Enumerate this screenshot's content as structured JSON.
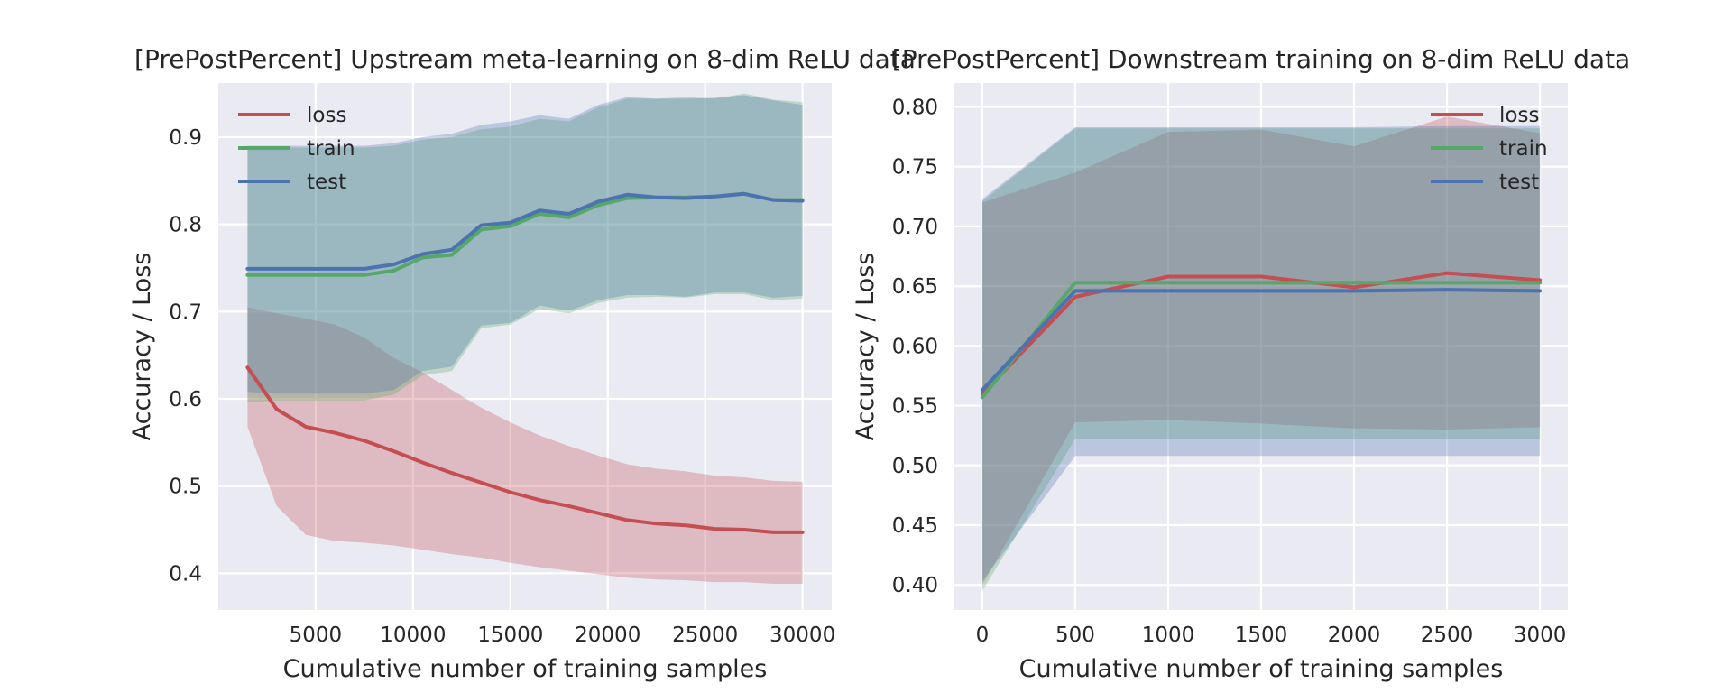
{
  "colors": {
    "loss": "#c44e52",
    "train": "#55a868",
    "test": "#4c72b0",
    "plot_bg": "#eaeaf2",
    "grid": "#ffffff"
  },
  "chart_data": [
    {
      "type": "line",
      "title": "[PrePostPercent] Upstream meta-learning on 8-dim ReLU data",
      "xlabel": "Cumulative number of training samples",
      "ylabel": "Accuracy / Loss",
      "xlim": [
        0,
        31500
      ],
      "ylim": [
        0.358,
        0.962
      ],
      "xticks": [
        5000,
        10000,
        15000,
        20000,
        25000,
        30000
      ],
      "yticks": [
        0.4,
        0.5,
        0.6,
        0.7,
        0.8,
        0.9
      ],
      "grid": true,
      "legend": "top-left",
      "x": [
        1500,
        3000,
        4500,
        6000,
        7500,
        9000,
        10500,
        12000,
        13500,
        15000,
        16500,
        18000,
        19500,
        21000,
        22500,
        24000,
        25500,
        27000,
        28500,
        30000
      ],
      "series": [
        {
          "name": "loss",
          "color_key": "loss",
          "values": [
            0.636,
            0.588,
            0.568,
            0.561,
            0.552,
            0.54,
            0.527,
            0.515,
            0.504,
            0.493,
            0.484,
            0.477,
            0.469,
            0.461,
            0.457,
            0.455,
            0.451,
            0.45,
            0.447,
            0.447
          ],
          "lower": [
            0.568,
            0.477,
            0.444,
            0.437,
            0.435,
            0.432,
            0.427,
            0.422,
            0.418,
            0.412,
            0.407,
            0.403,
            0.399,
            0.395,
            0.393,
            0.392,
            0.39,
            0.39,
            0.388,
            0.388
          ],
          "upper": [
            0.705,
            0.698,
            0.692,
            0.685,
            0.67,
            0.647,
            0.63,
            0.61,
            0.59,
            0.573,
            0.558,
            0.546,
            0.535,
            0.525,
            0.52,
            0.517,
            0.512,
            0.51,
            0.506,
            0.505
          ]
        },
        {
          "name": "train",
          "color_key": "train",
          "values": [
            0.742,
            0.742,
            0.742,
            0.742,
            0.742,
            0.747,
            0.762,
            0.765,
            0.794,
            0.798,
            0.812,
            0.808,
            0.822,
            0.83,
            0.831,
            0.831,
            0.832,
            0.835,
            0.828,
            0.828
          ],
          "lower": [
            0.596,
            0.598,
            0.598,
            0.598,
            0.598,
            0.605,
            0.627,
            0.632,
            0.681,
            0.685,
            0.703,
            0.698,
            0.71,
            0.716,
            0.717,
            0.716,
            0.72,
            0.72,
            0.713,
            0.715
          ],
          "upper": [
            0.888,
            0.888,
            0.888,
            0.888,
            0.888,
            0.89,
            0.897,
            0.9,
            0.909,
            0.912,
            0.921,
            0.918,
            0.934,
            0.944,
            0.944,
            0.946,
            0.944,
            0.95,
            0.943,
            0.94
          ]
        },
        {
          "name": "test",
          "color_key": "test",
          "values": [
            0.749,
            0.749,
            0.749,
            0.749,
            0.749,
            0.754,
            0.766,
            0.771,
            0.799,
            0.802,
            0.816,
            0.812,
            0.826,
            0.834,
            0.831,
            0.83,
            0.832,
            0.835,
            0.828,
            0.827
          ],
          "lower": [
            0.608,
            0.606,
            0.606,
            0.606,
            0.606,
            0.61,
            0.632,
            0.637,
            0.684,
            0.687,
            0.707,
            0.701,
            0.713,
            0.719,
            0.719,
            0.717,
            0.722,
            0.722,
            0.716,
            0.718
          ],
          "upper": [
            0.89,
            0.89,
            0.89,
            0.89,
            0.89,
            0.893,
            0.9,
            0.904,
            0.914,
            0.918,
            0.925,
            0.921,
            0.937,
            0.946,
            0.944,
            0.944,
            0.945,
            0.948,
            0.942,
            0.937
          ]
        }
      ]
    },
    {
      "type": "line",
      "title": "[PrePostPercent] Downstream training on 8-dim ReLU data",
      "xlabel": "Cumulative number of training samples",
      "ylabel": "Accuracy / Loss",
      "xlim": [
        -150,
        3150
      ],
      "ylim": [
        0.379,
        0.82
      ],
      "xticks": [
        0,
        500,
        1000,
        1500,
        2000,
        2500,
        3000
      ],
      "yticks": [
        0.4,
        0.45,
        0.5,
        0.55,
        0.6,
        0.65,
        0.7,
        0.75,
        0.8
      ],
      "grid": true,
      "legend": "top-right",
      "x": [
        0,
        500,
        1000,
        1500,
        2000,
        2500,
        3000
      ],
      "series": [
        {
          "name": "loss",
          "color_key": "loss",
          "values": [
            0.56,
            0.641,
            0.658,
            0.658,
            0.649,
            0.661,
            0.655
          ],
          "lower": [
            0.4,
            0.536,
            0.538,
            0.535,
            0.531,
            0.53,
            0.532
          ],
          "upper": [
            0.72,
            0.745,
            0.779,
            0.781,
            0.767,
            0.792,
            0.778
          ]
        },
        {
          "name": "train",
          "color_key": "train",
          "values": [
            0.557,
            0.653,
            0.653,
            0.653,
            0.653,
            0.653,
            0.653
          ],
          "lower": [
            0.395,
            0.522,
            0.522,
            0.522,
            0.522,
            0.522,
            0.522
          ],
          "upper": [
            0.721,
            0.782,
            0.782,
            0.782,
            0.782,
            0.782,
            0.782
          ]
        },
        {
          "name": "test",
          "color_key": "test",
          "values": [
            0.563,
            0.646,
            0.646,
            0.646,
            0.646,
            0.647,
            0.646
          ],
          "lower": [
            0.403,
            0.508,
            0.508,
            0.508,
            0.508,
            0.508,
            0.508
          ],
          "upper": [
            0.723,
            0.783,
            0.783,
            0.783,
            0.783,
            0.784,
            0.784
          ]
        }
      ]
    }
  ]
}
